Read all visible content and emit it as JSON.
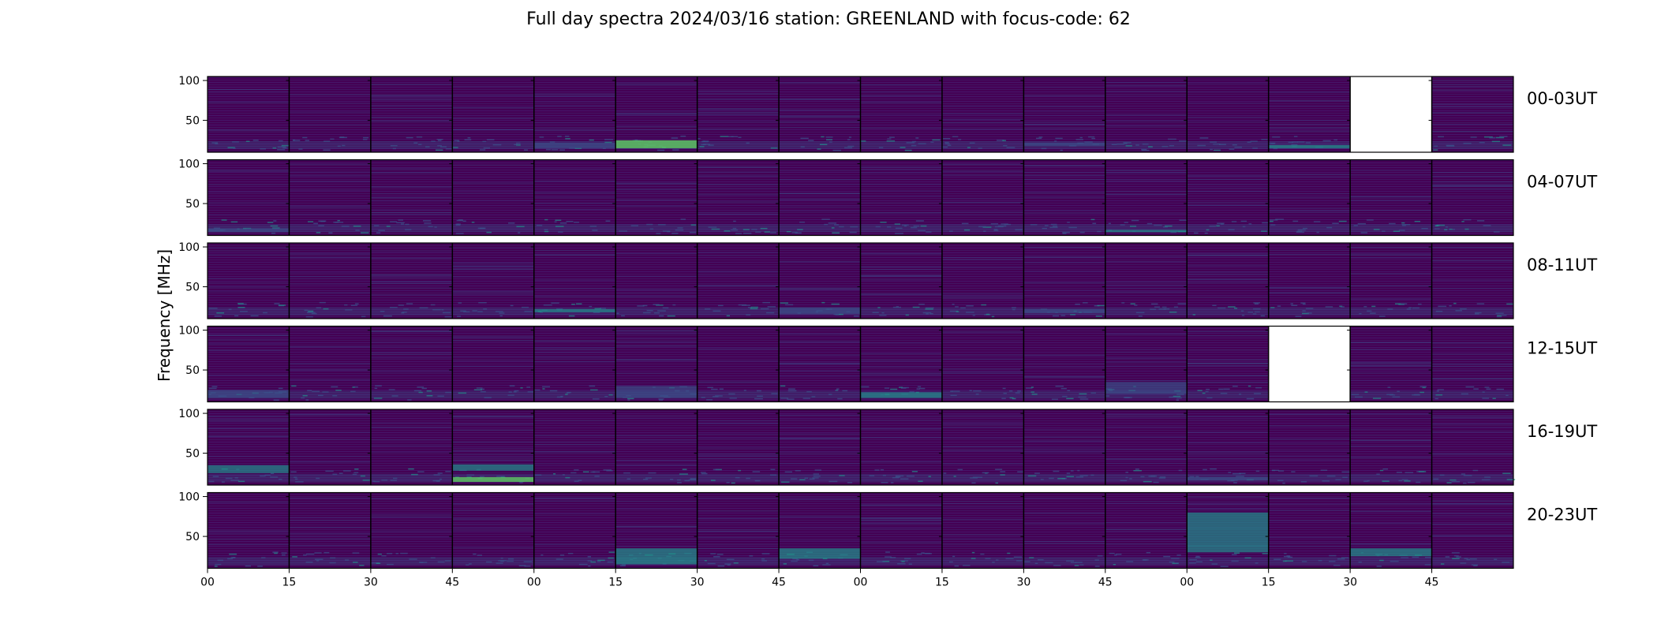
{
  "chart_data": {
    "type": "heatmap",
    "title": "Full day spectra 2024/03/16 station: GREENLAND with focus-code: 62",
    "ylabel": "Frequency [MHz]",
    "xlabel": "",
    "ylim": [
      10,
      105
    ],
    "yticks": [
      50,
      100
    ],
    "xticks": [
      "00",
      "15",
      "30",
      "45",
      "00",
      "15",
      "30",
      "45",
      "00",
      "15",
      "30",
      "45",
      "00",
      "15",
      "30",
      "45"
    ],
    "colormap": "viridis",
    "colors": {
      "background": "#440154",
      "band": "#3b528b",
      "bright": "#21918c",
      "peak": "#5ec962",
      "missing": "#ffffff"
    },
    "rows": [
      {
        "label": "00-03UT",
        "missing_panels": [
          14
        ],
        "features": [
          {
            "panel": 5,
            "f_low": 15,
            "f_high": 25,
            "level": 0.75
          },
          {
            "panel": 4,
            "f_low": 15,
            "f_high": 22,
            "level": 0.35
          },
          {
            "panel": 10,
            "f_low": 18,
            "f_high": 22,
            "level": 0.4
          },
          {
            "panel": 13,
            "f_low": 15,
            "f_high": 19,
            "level": 0.5
          }
        ]
      },
      {
        "label": "04-07UT",
        "missing_panels": [],
        "features": [
          {
            "panel": 0,
            "f_low": 14,
            "f_high": 19,
            "level": 0.4
          },
          {
            "panel": 11,
            "f_low": 14,
            "f_high": 17,
            "level": 0.45
          }
        ]
      },
      {
        "label": "08-11UT",
        "missing_panels": [],
        "features": [
          {
            "panel": 4,
            "f_low": 18,
            "f_high": 22,
            "level": 0.45
          },
          {
            "panel": 7,
            "f_low": 16,
            "f_high": 24,
            "level": 0.4
          },
          {
            "panel": 10,
            "f_low": 17,
            "f_high": 22,
            "level": 0.35
          }
        ]
      },
      {
        "label": "12-15UT",
        "missing_panels": [
          13
        ],
        "features": [
          {
            "panel": 0,
            "f_low": 15,
            "f_high": 25,
            "level": 0.4
          },
          {
            "panel": 5,
            "f_low": 15,
            "f_high": 30,
            "level": 0.4
          },
          {
            "panel": 8,
            "f_low": 15,
            "f_high": 22,
            "level": 0.45
          },
          {
            "panel": 11,
            "f_low": 20,
            "f_high": 35,
            "level": 0.4
          }
        ]
      },
      {
        "label": "16-19UT",
        "missing_panels": [],
        "features": [
          {
            "panel": 0,
            "f_low": 25,
            "f_high": 35,
            "level": 0.45
          },
          {
            "panel": 3,
            "f_low": 14,
            "f_high": 20,
            "level": 0.7
          },
          {
            "panel": 3,
            "f_low": 28,
            "f_high": 36,
            "level": 0.45
          },
          {
            "panel": 12,
            "f_low": 16,
            "f_high": 20,
            "level": 0.4
          }
        ]
      },
      {
        "label": "20-23UT",
        "missing_panels": [],
        "features": [
          {
            "panel": 5,
            "f_low": 15,
            "f_high": 35,
            "level": 0.5
          },
          {
            "panel": 7,
            "f_low": 22,
            "f_high": 35,
            "level": 0.5
          },
          {
            "panel": 12,
            "f_low": 30,
            "f_high": 80,
            "level": 0.45
          },
          {
            "panel": 14,
            "f_low": 25,
            "f_high": 35,
            "level": 0.5
          }
        ]
      }
    ]
  }
}
